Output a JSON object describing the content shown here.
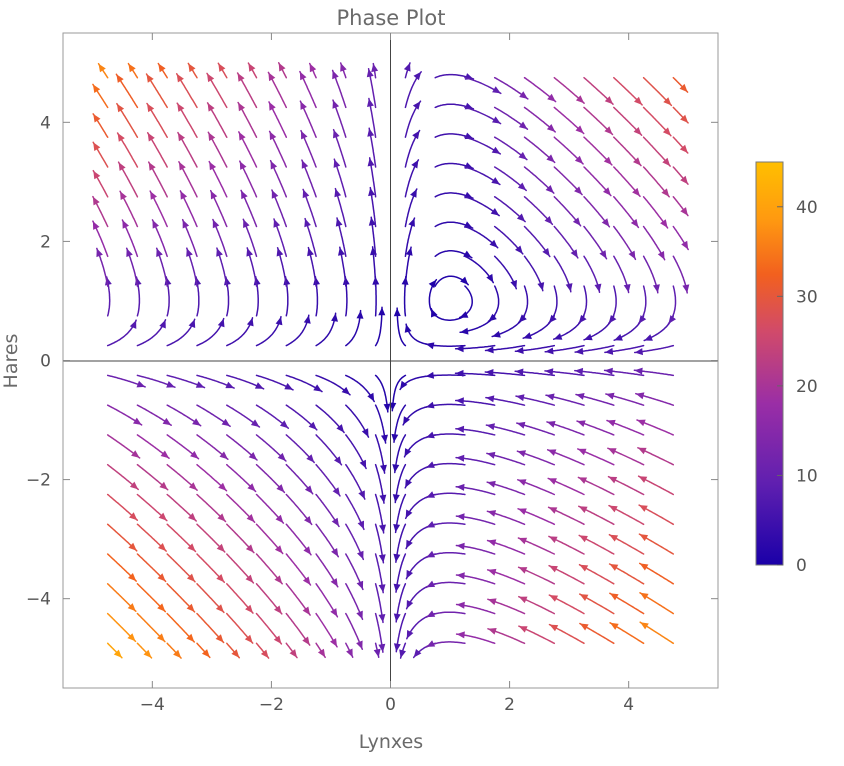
{
  "chart_data": {
    "type": "streamplot",
    "title": "Phase Plot",
    "xlabel": "Lynxes",
    "ylabel": "Hares",
    "xlim": [
      -5.5,
      5.5
    ],
    "ylim": [
      -5.5,
      5.5
    ],
    "x_ticks": [
      -4,
      -2,
      0,
      2,
      4
    ],
    "y_ticks": [
      -4,
      -2,
      0,
      2,
      4
    ],
    "x_tick_labels": [
      "−4",
      "−2",
      "0",
      "2",
      "4"
    ],
    "y_tick_labels": [
      "−4",
      "−2",
      "0",
      "2",
      "4"
    ],
    "vector_field": {
      "dx": "x*(y-1)",
      "dy": "y*(1-x)",
      "domain_x": [
        -5,
        5
      ],
      "domain_y": [
        -5,
        5
      ],
      "equilibria": [
        [
          0,
          0
        ],
        [
          1,
          1
        ]
      ]
    },
    "color_scale": {
      "quantity": "speed",
      "range": [
        0,
        45
      ],
      "ticks": [
        0,
        10,
        20,
        30,
        40
      ],
      "tick_labels": [
        "0",
        "10",
        "20",
        "30",
        "40"
      ],
      "colors": [
        "#1a00a8",
        "#5f1fb0",
        "#9a2ea6",
        "#d14a6a",
        "#f2601f",
        "#ff9a10",
        "#ffbf00"
      ]
    },
    "grid": false,
    "frame": true,
    "legend_placement": "right"
  }
}
